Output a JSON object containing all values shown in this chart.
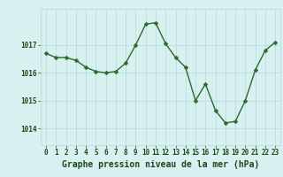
{
  "x": [
    0,
    1,
    2,
    3,
    4,
    5,
    6,
    7,
    8,
    9,
    10,
    11,
    12,
    13,
    14,
    15,
    16,
    17,
    18,
    19,
    20,
    21,
    22,
    23
  ],
  "y": [
    1016.7,
    1016.55,
    1016.55,
    1016.45,
    1016.2,
    1016.05,
    1016.0,
    1016.05,
    1016.35,
    1017.0,
    1017.75,
    1017.8,
    1017.05,
    1016.55,
    1016.2,
    1015.0,
    1015.6,
    1014.65,
    1014.2,
    1014.25,
    1015.0,
    1016.1,
    1016.8,
    1017.1
  ],
  "line_color": "#2d6a2d",
  "marker": "D",
  "marker_size": 2.5,
  "linewidth": 1.0,
  "background_color": "#d8f0f0",
  "grid_color": "#b8dede",
  "xlabel": "Graphe pression niveau de la mer (hPa)",
  "xlabel_color": "#1a4a1a",
  "xlabel_fontsize": 7.0,
  "tick_color": "#1a4a1a",
  "tick_fontsize": 5.5,
  "ytick_labels": [
    "1014",
    "1015",
    "1016",
    "1017"
  ],
  "yticks": [
    1014,
    1015,
    1016,
    1017
  ],
  "ylim": [
    1013.4,
    1018.3
  ],
  "xlim": [
    -0.5,
    23.5
  ]
}
